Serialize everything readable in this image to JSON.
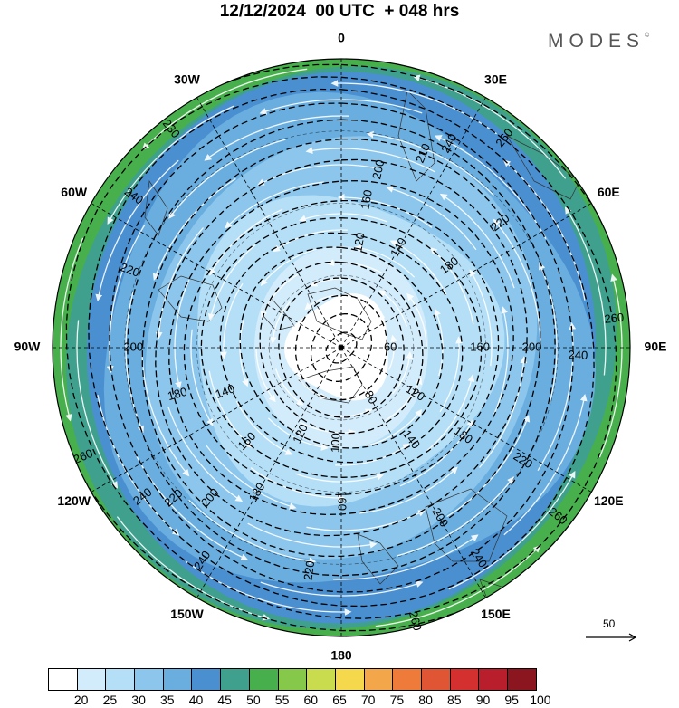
{
  "header": {
    "title": "12/12/2024  00 UTC  + 048 hrs",
    "brand": "MODES",
    "brand_mark": "©"
  },
  "map": {
    "projection": "south polar stereographic",
    "meridian_labels": [
      "0",
      "30E",
      "60E",
      "90E",
      "120E",
      "150E",
      "180",
      "150W",
      "120W",
      "90W",
      "60W",
      "30W"
    ],
    "meridian_angles": [
      0,
      30,
      60,
      90,
      120,
      150,
      180,
      210,
      240,
      270,
      300,
      330
    ],
    "contour_labels": [
      {
        "text": "260",
        "angle": 38,
        "ring": 0.92
      },
      {
        "text": "240",
        "angle": 28,
        "ring": 0.8
      },
      {
        "text": "220",
        "angle": 52,
        "ring": 0.7
      },
      {
        "text": "200",
        "angle": 12,
        "ring": 0.63
      },
      {
        "text": "160",
        "angle": 10,
        "ring": 0.52
      },
      {
        "text": "120",
        "angle": 10,
        "ring": 0.37
      },
      {
        "text": "140",
        "angle": 30,
        "ring": 0.4
      },
      {
        "text": "180",
        "angle": 53,
        "ring": 0.47
      },
      {
        "text": "260",
        "angle": 84,
        "ring": 0.95
      },
      {
        "text": "240",
        "angle": 92,
        "ring": 0.82
      },
      {
        "text": "200",
        "angle": 90,
        "ring": 0.66
      },
      {
        "text": "160",
        "angle": 90,
        "ring": 0.48
      },
      {
        "text": "60",
        "angle": 90,
        "ring": 0.17
      },
      {
        "text": "80",
        "angle": 150,
        "ring": 0.2
      },
      {
        "text": "120",
        "angle": 122,
        "ring": 0.3
      },
      {
        "text": "140",
        "angle": 143,
        "ring": 0.4
      },
      {
        "text": "180",
        "angle": 126,
        "ring": 0.52
      },
      {
        "text": "220",
        "angle": 122,
        "ring": 0.74
      },
      {
        "text": "260",
        "angle": 128,
        "ring": 0.95
      },
      {
        "text": "240",
        "angle": 147,
        "ring": 0.87
      },
      {
        "text": "200",
        "angle": 150,
        "ring": 0.68
      },
      {
        "text": "260",
        "angle": 165,
        "ring": 0.98
      },
      {
        "text": "220",
        "angle": 188,
        "ring": 0.78
      },
      {
        "text": "160",
        "angle": 180,
        "ring": 0.53
      },
      {
        "text": "100",
        "angle": 183,
        "ring": 0.33
      },
      {
        "text": "180",
        "angle": 210,
        "ring": 0.58
      },
      {
        "text": "120",
        "angle": 205,
        "ring": 0.33
      },
      {
        "text": "200",
        "angle": 221,
        "ring": 0.69
      },
      {
        "text": "220",
        "angle": 228,
        "ring": 0.78
      },
      {
        "text": "240",
        "angle": 233,
        "ring": 0.86
      },
      {
        "text": "160",
        "angle": 225,
        "ring": 0.46
      },
      {
        "text": "260",
        "angle": 247,
        "ring": 0.97
      },
      {
        "text": "240",
        "angle": 213,
        "ring": 0.88
      },
      {
        "text": "140",
        "angle": 249,
        "ring": 0.43
      },
      {
        "text": "180",
        "angle": 254,
        "ring": 0.59
      },
      {
        "text": "200",
        "angle": 270,
        "ring": 0.72
      },
      {
        "text": "220",
        "angle": 290,
        "ring": 0.78
      },
      {
        "text": "240",
        "angle": 306,
        "ring": 0.89
      },
      {
        "text": "230",
        "angle": 322,
        "ring": 0.96
      },
      {
        "text": "210",
        "angle": 23,
        "ring": 0.73
      }
    ],
    "center_label": "",
    "reference_vector": "50"
  },
  "colorbar": {
    "colors": [
      "#ffffff",
      "#d2ecfb",
      "#b4dff7",
      "#8cc6ec",
      "#6aaee0",
      "#4a8fd0",
      "#3fa08d",
      "#47b04c",
      "#86c84a",
      "#c8dc4d",
      "#f5d84b",
      "#f4a64a",
      "#ee7b39",
      "#e05533",
      "#d43030",
      "#b81e2c",
      "#8c1620"
    ],
    "labels": [
      "20",
      "25",
      "30",
      "35",
      "40",
      "45",
      "50",
      "55",
      "60",
      "65",
      "70",
      "75",
      "80",
      "85",
      "90",
      "95",
      "100"
    ]
  }
}
